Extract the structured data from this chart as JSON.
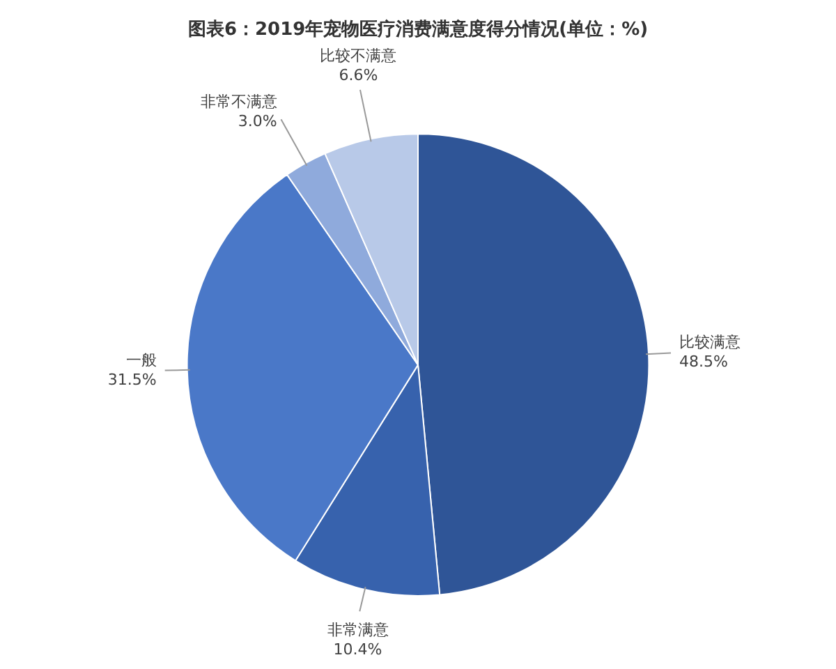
{
  "chart_data": {
    "type": "pie",
    "title": "图表6：2019年宠物医疗消费满意度得分情况(单位：%)",
    "categories": [
      "比较满意",
      "非常满意",
      "一般",
      "非常不满意",
      "比较不满意"
    ],
    "values": [
      48.5,
      10.4,
      31.5,
      3.0,
      6.6
    ],
    "value_labels": [
      "48.5%",
      "10.4%",
      "31.5%",
      "3.0%",
      "6.6%"
    ],
    "colors": [
      "#2f5597",
      "#3762ad",
      "#4a78c8",
      "#8faadc",
      "#b8c9e8"
    ],
    "legend": false
  }
}
